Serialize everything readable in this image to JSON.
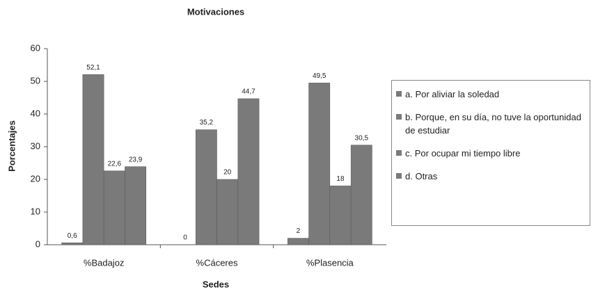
{
  "chart_data": {
    "type": "bar",
    "title": "Motivaciones",
    "x_label": "Sedes",
    "y_label": "Porcentajes",
    "categories": [
      "%Badajoz",
      "%Cáceres",
      "%Plasencia"
    ],
    "series": [
      {
        "name": "a. Por aliviar la soledad",
        "color": "#7a7a7a",
        "values": [
          0.6,
          0,
          2
        ],
        "value_labels": [
          "0,6",
          "0",
          "2"
        ]
      },
      {
        "name": "b. Porque, en su día, no tuve la oportunidad de estudiar",
        "color": "#7a7a7a",
        "values": [
          52.1,
          35.2,
          49.5
        ],
        "value_labels": [
          "52,1",
          "35,2",
          "49,5"
        ]
      },
      {
        "name": "c. Por ocupar mi tiempo libre",
        "color": "#7a7a7a",
        "values": [
          22.6,
          20,
          18
        ],
        "value_labels": [
          "22,6",
          "20",
          "18"
        ]
      },
      {
        "name": "d. Otras",
        "color": "#7a7a7a",
        "values": [
          23.9,
          44.7,
          30.5
        ],
        "value_labels": [
          "23,9",
          "44,7",
          "30,5"
        ]
      }
    ],
    "ylim": [
      0,
      60
    ],
    "yticks": [
      0,
      10,
      20,
      30,
      40,
      50,
      60
    ],
    "grid": false,
    "legend": "right"
  }
}
